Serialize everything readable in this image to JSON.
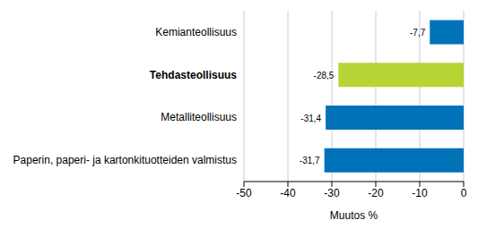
{
  "chart_data": {
    "type": "bar",
    "orientation": "horizontal",
    "categories": [
      "Kemianteollisuus",
      "Tehdasteollisuus",
      "Metalliteollisuus",
      "Paperin, paperi- ja kartonkituotteiden valmistus"
    ],
    "values": [
      -7.7,
      -28.5,
      -31.4,
      -31.7
    ],
    "value_labels": [
      "-7,7",
      "-28,5",
      "-31,4",
      "-31,7"
    ],
    "colors": [
      "#0072b8",
      "#b6d534",
      "#0072b8",
      "#0072b8"
    ],
    "xlabel": "Muutos %",
    "xlim": [
      -50,
      0
    ],
    "xticks": [
      -50,
      -40,
      -30,
      -20,
      -10,
      0
    ],
    "grid": true,
    "data_labels": true
  }
}
